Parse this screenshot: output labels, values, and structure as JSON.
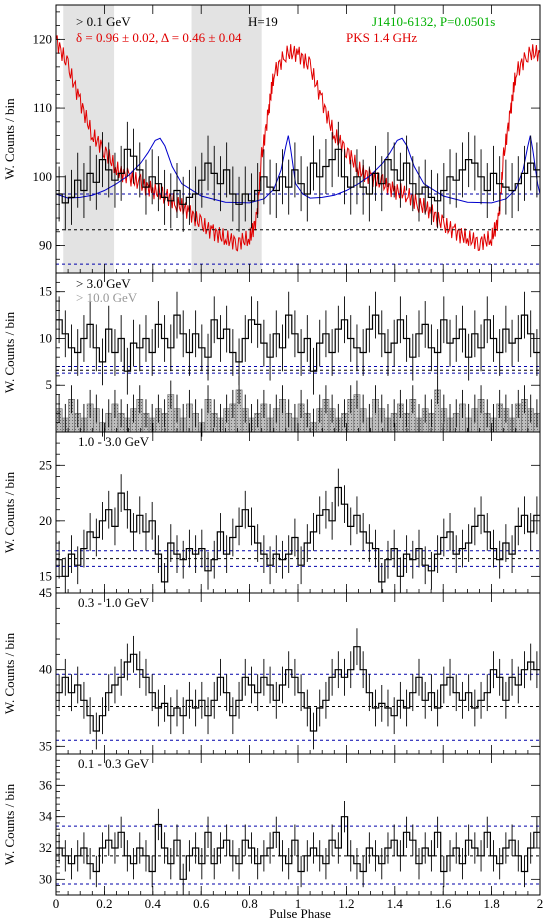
{
  "figure": {
    "xlabel": "Pulse Phase",
    "xlim": [
      0,
      2
    ]
  },
  "chart_data": [
    {
      "type": "line",
      "id": "p1",
      "ylabel": "W. Counts / bin",
      "ylim": [
        86,
        125
      ],
      "yticks": [
        90,
        100,
        110,
        120
      ],
      "energy_label": "> 0.1 GeV",
      "fit_label": "δ = 0.96 ± 0.02, Δ = 0.46 ± 0.04",
      "harmonic_label": "H=19",
      "pulsar_label": "J1410-6132, P=0.0501s",
      "radio_label": "PKS 1.4 GHz",
      "shaded_intervals": [
        [
          0.03,
          0.24
        ],
        [
          0.56,
          0.85
        ]
      ],
      "baselines": [
        {
          "y": 97.5,
          "color": "#0000aa"
        },
        {
          "y": 92.3,
          "color": "#000000"
        },
        {
          "y": 87.3,
          "color": "#0000aa"
        }
      ],
      "gamma_counts": [
        97.5,
        96.2,
        97.0,
        99.5,
        98.0,
        100.5,
        99.2,
        102.5,
        101.0,
        99.5,
        100.5,
        104.0,
        103.0,
        101.0,
        98.5,
        100.0,
        99.0,
        97.0,
        96.5,
        98.0,
        96.0,
        97.0,
        97.5,
        99.5,
        102.0,
        100.5,
        99.0,
        101.0,
        97.5,
        96.0,
        97.5,
        96.5,
        98.0,
        100.0,
        98.5,
        98.0,
        100.0,
        98.5,
        101.0,
        99.0,
        97.5,
        102.0,
        100.0,
        101.5,
        102.5,
        104.0,
        100.0,
        98.5,
        100.0,
        98.5,
        97.5,
        100.5,
        99.0,
        102.5,
        101.0,
        99.5,
        102.0,
        99.0,
        97.5,
        98.5,
        97.0,
        96.5,
        98.0,
        100.0,
        99.5,
        101.0,
        102.5,
        102.0,
        100.0,
        98.0,
        100.5,
        99.0,
        98.5,
        98.0,
        99.0,
        100.5,
        102.0,
        101.0
      ],
      "gamma_error": 4,
      "model_curve": {
        "x": [
          0,
          0.05,
          0.1,
          0.15,
          0.2,
          0.25,
          0.3,
          0.35,
          0.38,
          0.41,
          0.43,
          0.45,
          0.48,
          0.52,
          0.6,
          0.7,
          0.8,
          0.86,
          0.9,
          0.93,
          0.95,
          0.96,
          0.97,
          0.99,
          1.02,
          1.05,
          1.1,
          1.15,
          1.2,
          1.25,
          1.3,
          1.35,
          1.38,
          1.41,
          1.43,
          1.45,
          1.48,
          1.52,
          1.6,
          1.7,
          1.8,
          1.86,
          1.9,
          1.93,
          1.95,
          1.96,
          1.97,
          1.99,
          2.0
        ],
        "y": [
          97.5,
          96.9,
          97.0,
          97.3,
          98.0,
          99.0,
          100.2,
          102.0,
          103.5,
          105.3,
          105.6,
          104.5,
          101.5,
          99.0,
          97.2,
          96.3,
          96.2,
          96.8,
          98.2,
          101.0,
          104.5,
          106.0,
          104.0,
          99.0,
          97.5,
          96.9,
          97.0,
          97.3,
          98.0,
          99.0,
          100.2,
          102.0,
          103.5,
          105.3,
          105.6,
          104.5,
          101.5,
          99.0,
          97.2,
          96.3,
          96.2,
          96.8,
          98.2,
          101.0,
          104.5,
          106.0,
          104.0,
          99.0,
          97.5
        ]
      },
      "radio_profile": {
        "x": [
          0,
          0.05,
          0.1,
          0.15,
          0.2,
          0.25,
          0.3,
          0.35,
          0.4,
          0.45,
          0.5,
          0.55,
          0.6,
          0.65,
          0.7,
          0.75,
          0.8,
          0.83,
          0.85,
          0.88,
          0.9,
          0.95,
          1.0,
          1.05,
          1.1,
          1.15,
          1.2,
          1.25,
          1.3,
          1.35,
          1.4,
          1.45,
          1.5,
          1.55,
          1.6,
          1.65,
          1.7,
          1.75,
          1.8,
          1.83,
          1.85,
          1.88,
          1.9,
          1.95,
          2.0
        ],
        "y": [
          120,
          116,
          111,
          106,
          104,
          101,
          100,
          99,
          98,
          97.5,
          96,
          95,
          93,
          92,
          91,
          90.5,
          91,
          94,
          103,
          110,
          115,
          118,
          118,
          116,
          111,
          106,
          104,
          101,
          100,
          99,
          98,
          97.5,
          96,
          95,
          93,
          92,
          91,
          90.5,
          91,
          94,
          103,
          110,
          115,
          118,
          118
        ]
      }
    },
    {
      "type": "line",
      "id": "p2",
      "ylabel": "W. Counts / bin",
      "ylim": [
        0,
        17
      ],
      "yticks": [
        5,
        10,
        15
      ],
      "energy_label": "> 3.0 GeV",
      "energy_label_2": "> 10.0 GeV",
      "baselines": [
        {
          "y": 7.0,
          "color": "#0000aa"
        },
        {
          "y": 6.6,
          "color": "#000000"
        },
        {
          "y": 6.3,
          "color": "#0000aa"
        }
      ],
      "counts": [
        12.0,
        10.5,
        9.0,
        8.5,
        10.0,
        11.5,
        9.0,
        7.5,
        11.0,
        8.5,
        10.0,
        6.5,
        9.5,
        9.0,
        10.0,
        8.5,
        11.5,
        10.0,
        9.0,
        12.5,
        10.5,
        8.5,
        10.5,
        9.0,
        8.0,
        12.0,
        10.0,
        11.0,
        8.5,
        7.5,
        10.0,
        12.0,
        11.5,
        9.5,
        8.0,
        10.5,
        9.0,
        12.5,
        10.5,
        8.5,
        10.0,
        6.5,
        9.5,
        10.5,
        8.5,
        11.0,
        12.0,
        10.0,
        9.0,
        8.5,
        11.0,
        12.5,
        10.5,
        8.5,
        9.5,
        12.0,
        10.0,
        8.0,
        10.5,
        11.5,
        9.0,
        8.5,
        12.0,
        9.5,
        10.0,
        11.0,
        8.0,
        10.5,
        9.0,
        12.0,
        10.0,
        8.5,
        11.0,
        9.5,
        10.0,
        12.5,
        10.5,
        8.5
      ],
      "counts_error": 2.5,
      "high_energy_counts": [
        2.5,
        1.5,
        3.5,
        2.0,
        1.5,
        3.0,
        2.5,
        1.0,
        2.0,
        3.0,
        2.0,
        1.5,
        2.5,
        3.5,
        2.0,
        1.5,
        2.5,
        2.0,
        4.0,
        2.5,
        1.5,
        3.0,
        2.0,
        1.0,
        3.5,
        2.0,
        1.5,
        2.5,
        3.0,
        4.5,
        2.5,
        1.5,
        2.0,
        3.0,
        1.5,
        2.5,
        3.5,
        2.0,
        1.5,
        3.0,
        2.0,
        1.0,
        2.5,
        3.5,
        2.5,
        1.5,
        2.0,
        3.5,
        4.0,
        2.5,
        1.5,
        3.5,
        2.5,
        1.5,
        2.0,
        3.0,
        2.0,
        3.5,
        1.5,
        2.5,
        2.0,
        4.5,
        2.5,
        1.5,
        2.0,
        3.0,
        1.5,
        2.5,
        3.5,
        2.0,
        1.5,
        3.0,
        2.5,
        1.5,
        3.0,
        3.5,
        2.5,
        2.0
      ],
      "high_energy_error": 1.5
    },
    {
      "type": "line",
      "id": "p3",
      "ylabel": "W. Counts / bin",
      "ylim": [
        13.5,
        28
      ],
      "yticks": [
        15,
        20,
        25
      ],
      "energy_label": "1.0 - 3.0 GeV",
      "baselines": [
        {
          "y": 17.3,
          "color": "#0000aa"
        },
        {
          "y": 16.6,
          "color": "#000000"
        },
        {
          "y": 15.9,
          "color": "#0000aa"
        }
      ],
      "counts": [
        16.5,
        15.0,
        17.0,
        16.0,
        17.5,
        19.0,
        18.5,
        20.0,
        21.0,
        19.5,
        22.5,
        21.0,
        19.0,
        20.5,
        19.0,
        20.0,
        17.0,
        14.5,
        18.0,
        17.0,
        16.5,
        17.5,
        17.0,
        17.5,
        15.5,
        16.5,
        19.0,
        17.0,
        18.5,
        19.5,
        21.0,
        19.5,
        18.0,
        17.0,
        16.0,
        17.0,
        16.5,
        17.0,
        18.5,
        16.0,
        18.0,
        19.0,
        20.5,
        21.0,
        20.0,
        23.0,
        21.5,
        19.5,
        20.5,
        19.0,
        18.0,
        17.5,
        14.5,
        16.5,
        17.5,
        15.0,
        17.0,
        16.5,
        17.5,
        16.0,
        15.5,
        17.0,
        18.5,
        19.0,
        17.0,
        17.5,
        18.0,
        19.5,
        20.5,
        19.0,
        17.5,
        16.5,
        18.0,
        17.0,
        19.5,
        20.5,
        19.0,
        20.5
      ],
      "counts_error": 1.7
    },
    {
      "type": "line",
      "id": "p4",
      "ylabel": "W. Counts / bin",
      "ylim": [
        34.5,
        45
      ],
      "yticks": [
        35,
        40,
        45
      ],
      "energy_label": "0.3 - 1.0 GeV",
      "baselines": [
        {
          "y": 39.7,
          "color": "#0000aa"
        },
        {
          "y": 37.6,
          "color": "#000000"
        },
        {
          "y": 35.4,
          "color": "#0000aa"
        }
      ],
      "counts": [
        38.5,
        39.5,
        38.5,
        39.0,
        38.0,
        37.0,
        36.0,
        37.0,
        38.5,
        39.0,
        39.5,
        40.5,
        41.0,
        40.0,
        39.5,
        38.5,
        37.5,
        37.8,
        37.0,
        37.5,
        37.0,
        38.0,
        37.5,
        38.0,
        37.0,
        38.0,
        39.5,
        38.5,
        37.0,
        38.0,
        39.5,
        39.0,
        38.5,
        39.5,
        39.0,
        38.0,
        39.0,
        40.0,
        39.5,
        38.5,
        37.5,
        36.0,
        37.5,
        38.0,
        39.5,
        40.0,
        39.5,
        40.0,
        41.5,
        40.0,
        38.5,
        37.5,
        37.8,
        37.5,
        37.0,
        38.0,
        37.5,
        38.5,
        39.5,
        38.0,
        38.5,
        37.5,
        39.0,
        39.5,
        38.5,
        38.0,
        38.5,
        37.5,
        38.0,
        38.5,
        40.0,
        39.5,
        38.0,
        39.5,
        39.0,
        40.0,
        40.5,
        40.0
      ],
      "counts_error": 1.2
    },
    {
      "type": "line",
      "id": "p5",
      "ylabel": "W. Counts / bin",
      "ylim": [
        29,
        38
      ],
      "yticks": [
        30,
        32,
        34,
        36
      ],
      "energy_label": "0.1 - 0.3 GeV",
      "baselines": [
        {
          "y": 33.4,
          "color": "#0000aa"
        },
        {
          "y": 31.5,
          "color": "#000000"
        },
        {
          "y": 29.7,
          "color": "#0000aa"
        }
      ],
      "counts": [
        32.0,
        31.5,
        31.0,
        31.5,
        32.0,
        31.0,
        30.5,
        32.0,
        32.5,
        32.0,
        33.0,
        31.5,
        31.0,
        32.0,
        31.5,
        30.5,
        33.5,
        32.0,
        31.0,
        32.5,
        30.0,
        31.5,
        32.0,
        31.0,
        33.0,
        31.0,
        32.0,
        32.5,
        31.5,
        31.0,
        32.5,
        32.0,
        31.0,
        31.5,
        32.0,
        33.0,
        31.5,
        31.0,
        32.5,
        30.5,
        31.5,
        32.0,
        31.5,
        31.0,
        32.5,
        32.0,
        34.0,
        31.5,
        31.0,
        30.5,
        32.0,
        31.5,
        31.0,
        32.0,
        32.5,
        31.5,
        33.0,
        32.5,
        31.0,
        32.0,
        31.5,
        33.0,
        30.5,
        31.5,
        32.0,
        31.0,
        32.5,
        32.0,
        31.5,
        33.0,
        31.5,
        31.0,
        32.0,
        32.5,
        31.5,
        30.5,
        32.0,
        33.0
      ],
      "counts_error": 1.0
    }
  ]
}
